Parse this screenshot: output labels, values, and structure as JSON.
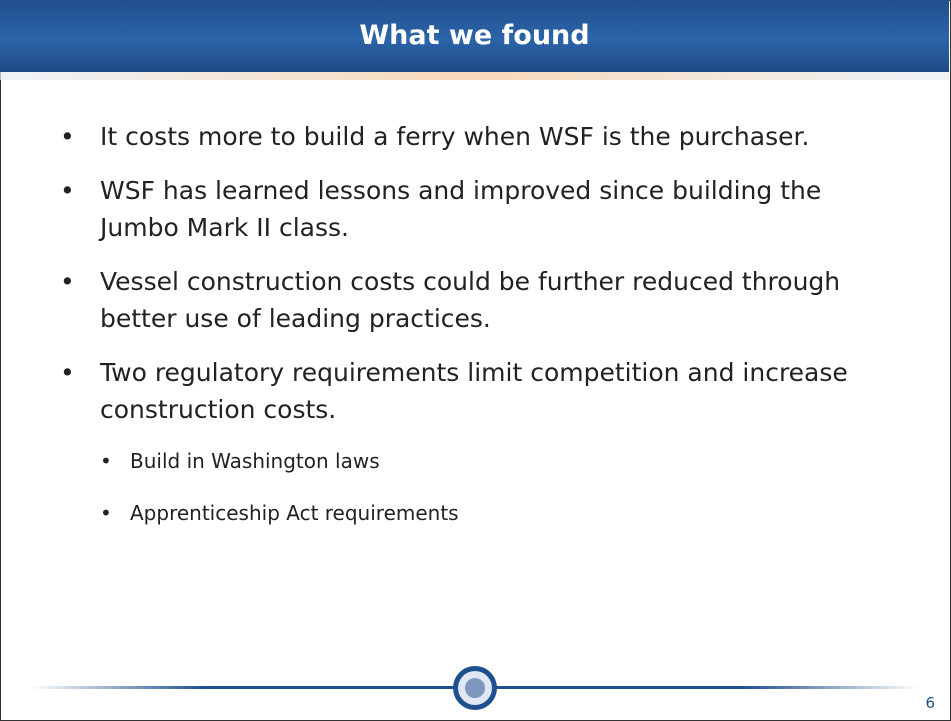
{
  "header": {
    "title": "What we found"
  },
  "bullets": [
    {
      "text": "It costs more to build a ferry when WSF is the purchaser."
    },
    {
      "text": "WSF has learned lessons and improved since building the Jumbo Mark II class."
    },
    {
      "text": "Vessel construction costs could be further reduced through better use of leading practices."
    },
    {
      "text": "Two regulatory requirements limit competition and increase construction costs.",
      "sub": [
        "Build in Washington laws",
        "Apprenticeship Act requirements"
      ]
    }
  ],
  "footer": {
    "page": "6"
  }
}
